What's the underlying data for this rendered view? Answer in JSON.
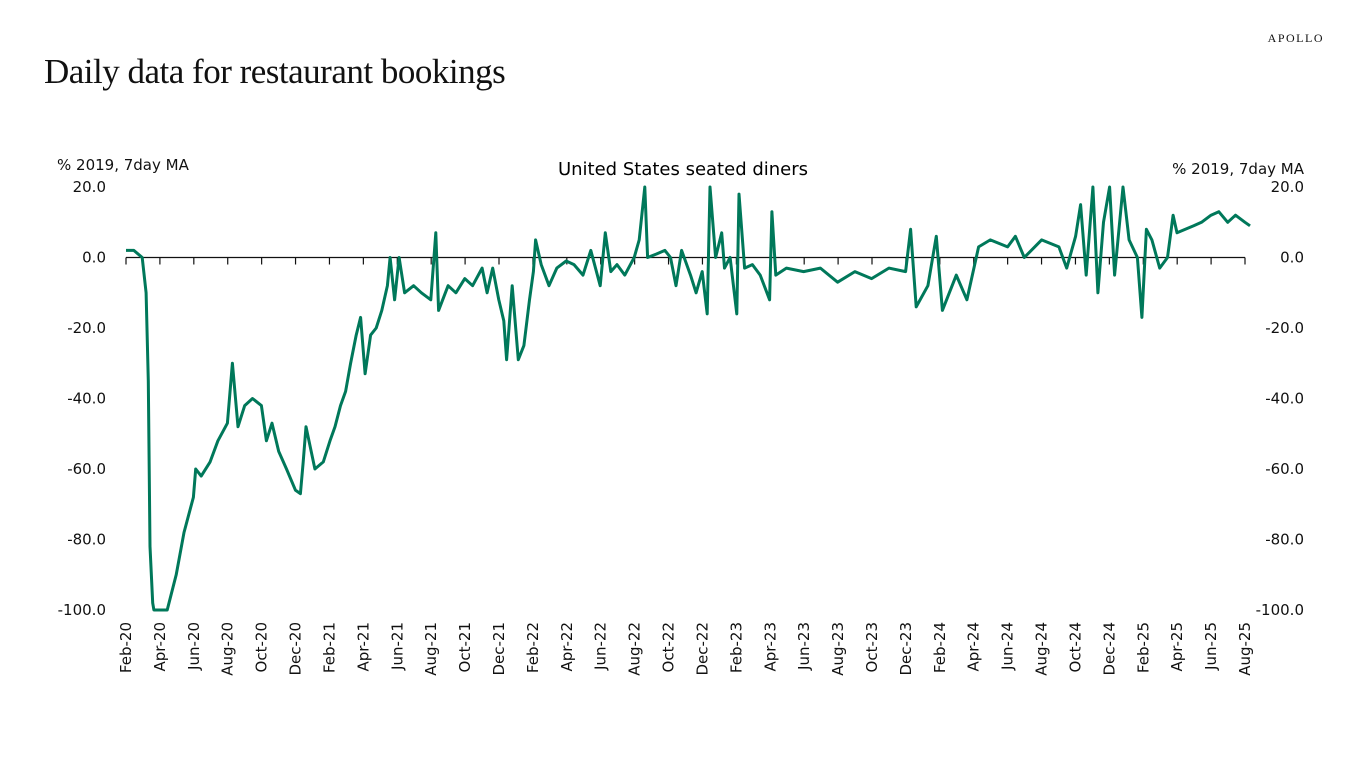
{
  "title": "Daily data for restaurant bookings",
  "logo": "APOLLO",
  "chart_data": {
    "type": "line",
    "title": "United States seated diners",
    "ylabel_left": "% 2019, 7day MA",
    "ylabel_right": "% 2019, 7day MA",
    "ylim": [
      -100,
      20
    ],
    "yticks": [
      "20.0",
      "0.0",
      "-20.0",
      "-40.0",
      "-60.0",
      "-80.0",
      "-100.0"
    ],
    "xticks": [
      "Feb-20",
      "Apr-20",
      "Jun-20",
      "Aug-20",
      "Oct-20",
      "Dec-20",
      "Feb-21",
      "Apr-21",
      "Jun-21",
      "Aug-21",
      "Oct-21",
      "Dec-21",
      "Feb-22",
      "Apr-22",
      "Jun-22",
      "Aug-22",
      "Oct-22",
      "Dec-22",
      "Feb-23",
      "Apr-23",
      "Jun-23",
      "Aug-23",
      "Oct-23",
      "Dec-23",
      "Feb-24",
      "Apr-24",
      "Jun-24",
      "Aug-24",
      "Oct-24",
      "Dec-24",
      "Feb-25",
      "Apr-25",
      "Jun-25",
      "Aug-25"
    ],
    "grid": false,
    "line_color": "#00785A",
    "series": [
      {
        "x": [
          "2020-02-01",
          "2020-02-15",
          "2020-03-01",
          "2020-03-08",
          "2020-03-12",
          "2020-03-15",
          "2020-03-20",
          "2020-03-22",
          "2020-04-15",
          "2020-05-01",
          "2020-05-15",
          "2020-06-01",
          "2020-06-05",
          "2020-06-15",
          "2020-07-01",
          "2020-07-15",
          "2020-08-01",
          "2020-08-10",
          "2020-08-20",
          "2020-09-01",
          "2020-09-15",
          "2020-10-01",
          "2020-10-10",
          "2020-10-20",
          "2020-11-01",
          "2020-11-15",
          "2020-12-01",
          "2020-12-10",
          "2020-12-15",
          "2020-12-20",
          "2021-01-05",
          "2021-01-20",
          "2021-02-01",
          "2021-02-10",
          "2021-02-20",
          "2021-03-01",
          "2021-03-10",
          "2021-03-20",
          "2021-03-28",
          "2021-04-05",
          "2021-04-15",
          "2021-04-25",
          "2021-05-05",
          "2021-05-15",
          "2021-05-20",
          "2021-05-28",
          "2021-06-05",
          "2021-06-15",
          "2021-07-01",
          "2021-07-15",
          "2021-08-01",
          "2021-08-10",
          "2021-08-15",
          "2021-09-01",
          "2021-09-15",
          "2021-10-01",
          "2021-10-15",
          "2021-11-01",
          "2021-11-10",
          "2021-11-20",
          "2021-12-01",
          "2021-12-10",
          "2021-12-15",
          "2021-12-25",
          "2022-01-05",
          "2022-01-15",
          "2022-01-25",
          "2022-02-01",
          "2022-02-05",
          "2022-02-15",
          "2022-03-01",
          "2022-03-15",
          "2022-04-01",
          "2022-04-15",
          "2022-05-01",
          "2022-05-15",
          "2022-06-01",
          "2022-06-10",
          "2022-06-20",
          "2022-07-01",
          "2022-07-15",
          "2022-08-01",
          "2022-08-10",
          "2022-08-20",
          "2022-08-25",
          "2022-09-10",
          "2022-09-25",
          "2022-10-05",
          "2022-10-15",
          "2022-10-25",
          "2022-11-10",
          "2022-11-20",
          "2022-12-01",
          "2022-12-10",
          "2022-12-15",
          "2022-12-25",
          "2023-01-05",
          "2023-01-10",
          "2023-01-20",
          "2023-02-01",
          "2023-02-05",
          "2023-02-15",
          "2023-03-01",
          "2023-03-15",
          "2023-04-01",
          "2023-04-05",
          "2023-04-12",
          "2023-05-01",
          "2023-06-01",
          "2023-07-01",
          "2023-08-01",
          "2023-09-01",
          "2023-10-01",
          "2023-11-01",
          "2023-12-01",
          "2023-12-10",
          "2023-12-20",
          "2024-01-10",
          "2024-01-25",
          "2024-02-05",
          "2024-03-01",
          "2024-03-20",
          "2024-04-10",
          "2024-05-01",
          "2024-06-01",
          "2024-06-15",
          "2024-07-01",
          "2024-08-01",
          "2024-09-01",
          "2024-09-15",
          "2024-10-01",
          "2024-10-10",
          "2024-10-20",
          "2024-11-01",
          "2024-11-10",
          "2024-11-20",
          "2024-12-01",
          "2024-12-10",
          "2024-12-25",
          "2025-01-05",
          "2025-01-20",
          "2025-01-28",
          "2025-02-05",
          "2025-02-15",
          "2025-03-01",
          "2025-03-15",
          "2025-03-25",
          "2025-04-01",
          "2025-05-01",
          "2025-05-15",
          "2025-06-01",
          "2025-06-15",
          "2025-07-01",
          "2025-07-15",
          "2025-08-01",
          "2025-08-10"
        ],
        "y": [
          2,
          2,
          0,
          -10,
          -35,
          -82,
          -98,
          -100,
          -100,
          -90,
          -78,
          -68,
          -60,
          -62,
          -58,
          -52,
          -47,
          -30,
          -48,
          -42,
          -40,
          -42,
          -52,
          -47,
          -55,
          -60,
          -66,
          -67,
          -58,
          -48,
          -60,
          -58,
          -52,
          -48,
          -42,
          -38,
          -30,
          -22,
          -17,
          -33,
          -22,
          -20,
          -15,
          -8,
          0,
          -12,
          0,
          -10,
          -8,
          -10,
          -12,
          7,
          -15,
          -8,
          -10,
          -6,
          -8,
          -3,
          -10,
          -3,
          -12,
          -18,
          -29,
          -8,
          -29,
          -25,
          -12,
          -4,
          5,
          -2,
          -8,
          -3,
          -1,
          -2,
          -5,
          2,
          -8,
          7,
          -4,
          -2,
          -5,
          0,
          5,
          20,
          0,
          1,
          2,
          0,
          -8,
          2,
          -5,
          -10,
          -4,
          -16,
          20,
          0,
          7,
          -3,
          0,
          -16,
          18,
          -3,
          -2,
          -5,
          -12,
          13,
          -5,
          -3,
          -4,
          -3,
          -7,
          -4,
          -6,
          -3,
          -4,
          8,
          -14,
          -8,
          6,
          -15,
          -5,
          -12,
          3,
          5,
          3,
          6,
          0,
          5,
          3,
          -3,
          6,
          15,
          -5,
          20,
          -10,
          10,
          20,
          -5,
          20,
          5,
          0,
          -17,
          8,
          5,
          -3,
          0,
          12,
          7,
          9,
          10,
          12,
          13,
          10,
          12,
          10,
          9
        ]
      }
    ]
  }
}
